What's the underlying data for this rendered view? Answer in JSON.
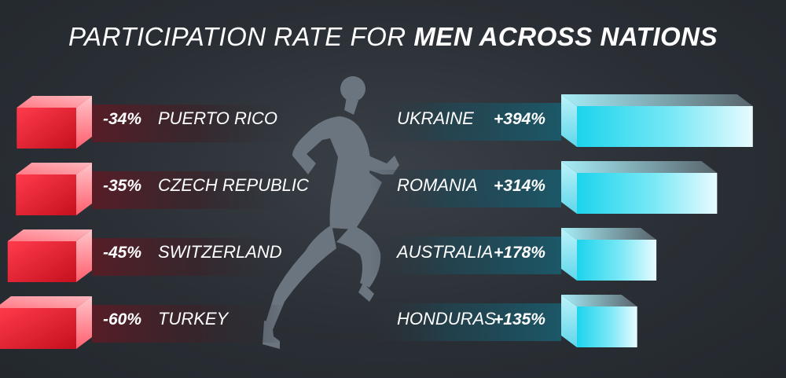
{
  "title": {
    "part1": "PARTICIPATION RATE FOR ",
    "part2": "MEN ACROSS NATIONS"
  },
  "colors": {
    "negative": "#e8192c",
    "positive": "#27d9ef",
    "background": "#2a2f35",
    "runner": "#6b7580"
  },
  "icon": "runner-silhouette",
  "chart_data": {
    "type": "bar",
    "negative": {
      "categories": [
        "PUERTO RICO",
        "CZECH REPUBLIC",
        "SWITZERLAND",
        "TURKEY"
      ],
      "values": [
        -34,
        -35,
        -45,
        -60
      ],
      "labels": [
        "-34%",
        "-35%",
        "-45%",
        "-60%"
      ]
    },
    "positive": {
      "categories": [
        "UKRAINE",
        "ROMANIA",
        "AUSTRALIA",
        "HONDURAS"
      ],
      "values": [
        394,
        314,
        178,
        135
      ],
      "labels": [
        "+394%",
        "+314%",
        "+178%",
        "+135%"
      ]
    }
  }
}
